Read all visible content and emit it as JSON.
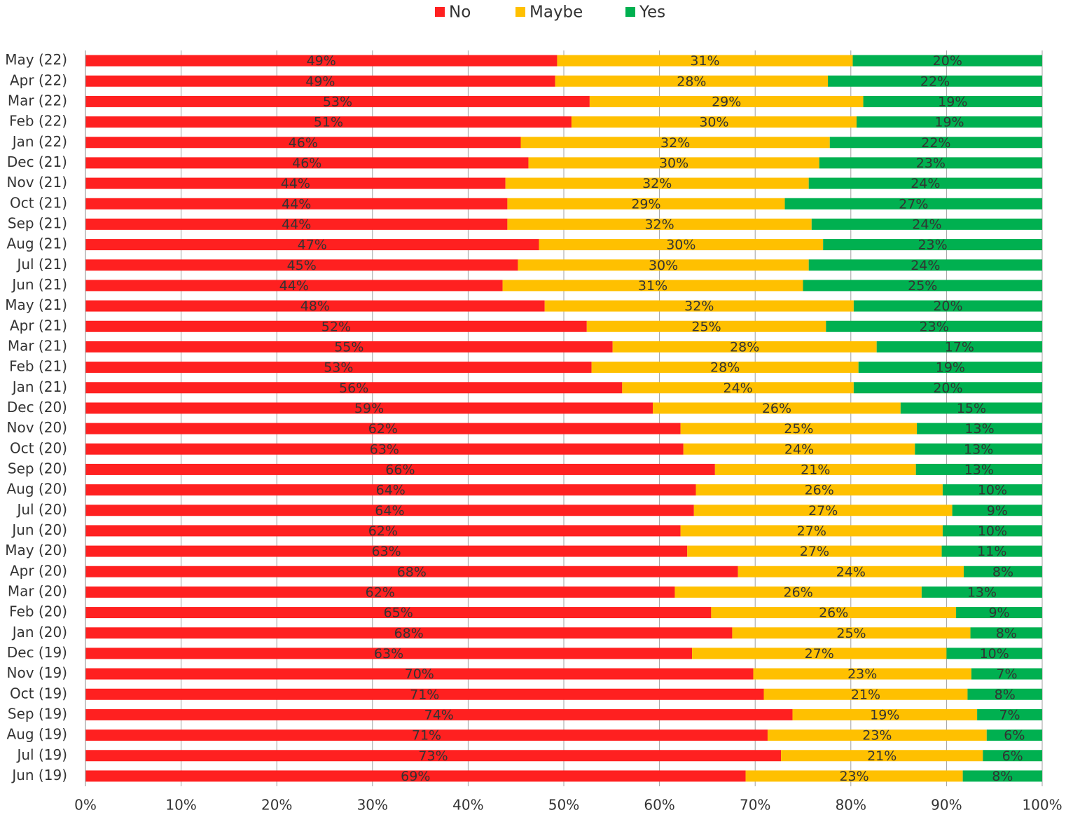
{
  "chart_data": {
    "type": "stacked-bar-horizontal",
    "categories": [
      "May (22)",
      "Apr (22)",
      "Mar (22)",
      "Feb (22)",
      "Jan (22)",
      "Dec (21)",
      "Nov (21)",
      "Oct (21)",
      "Sep (21)",
      "Aug (21)",
      "Jul (21)",
      "Jun (21)",
      "May (21)",
      "Apr (21)",
      "Mar (21)",
      "Feb (21)",
      "Jan (21)",
      "Dec (20)",
      "Nov (20)",
      "Oct (20)",
      "Sep (20)",
      "Aug (20)",
      "Jul (20)",
      "Jun (20)",
      "May (20)",
      "Apr (20)",
      "Mar (20)",
      "Feb (20)",
      "Jan (20)",
      "Dec (19)",
      "Nov (19)",
      "Oct (19)",
      "Sep (19)",
      "Aug (19)",
      "Jul (19)",
      "Jun (19)"
    ],
    "series": [
      {
        "name": "No",
        "color": "#ff2020",
        "values": [
          49.3,
          49.1,
          52.7,
          50.8,
          45.5,
          46.3,
          43.9,
          44.1,
          44.1,
          47.4,
          45.2,
          43.6,
          48.0,
          52.4,
          55.1,
          52.9,
          56.1,
          59.3,
          62.2,
          62.5,
          65.8,
          63.8,
          63.6,
          62.2,
          62.9,
          68.2,
          61.6,
          65.4,
          67.6,
          63.4,
          69.8,
          70.9,
          73.9,
          71.3,
          72.7,
          69.0
        ],
        "value_labels": [
          "49%",
          "49%",
          "53%",
          "51%",
          "46%",
          "46%",
          "44%",
          "44%",
          "44%",
          "47%",
          "45%",
          "44%",
          "48%",
          "52%",
          "55%",
          "53%",
          "56%",
          "59%",
          "62%",
          "63%",
          "66%",
          "64%",
          "64%",
          "62%",
          "63%",
          "68%",
          "62%",
          "65%",
          "68%",
          "63%",
          "70%",
          "71%",
          "74%",
          "71%",
          "73%",
          "69%"
        ]
      },
      {
        "name": "Maybe",
        "color": "#ffc000",
        "values": [
          30.9,
          28.5,
          28.6,
          29.8,
          32.3,
          30.4,
          31.7,
          29.0,
          31.8,
          29.7,
          30.4,
          31.4,
          32.3,
          25.0,
          27.6,
          27.9,
          24.2,
          25.9,
          24.7,
          24.2,
          21.0,
          25.8,
          27.0,
          27.4,
          26.6,
          23.6,
          25.8,
          25.6,
          24.9,
          26.6,
          22.8,
          21.3,
          19.3,
          22.9,
          21.1,
          22.7
        ],
        "value_labels": [
          "31%",
          "28%",
          "29%",
          "30%",
          "32%",
          "30%",
          "32%",
          "29%",
          "32%",
          "30%",
          "30%",
          "31%",
          "32%",
          "25%",
          "28%",
          "28%",
          "24%",
          "26%",
          "25%",
          "24%",
          "21%",
          "26%",
          "27%",
          "27%",
          "27%",
          "24%",
          "26%",
          "26%",
          "25%",
          "27%",
          "23%",
          "21%",
          "19%",
          "23%",
          "21%",
          "23%"
        ]
      },
      {
        "name": "Yes",
        "color": "#00b050",
        "values": [
          19.8,
          22.4,
          18.7,
          19.4,
          22.2,
          23.3,
          24.4,
          26.9,
          24.1,
          22.9,
          24.4,
          25.0,
          19.7,
          22.6,
          17.3,
          19.2,
          19.7,
          14.8,
          13.1,
          13.3,
          13.2,
          10.4,
          9.4,
          10.4,
          10.5,
          8.2,
          12.6,
          9.0,
          7.5,
          10.0,
          7.4,
          7.8,
          6.8,
          5.8,
          6.2,
          8.3
        ],
        "value_labels": [
          "20%",
          "22%",
          "19%",
          "19%",
          "22%",
          "23%",
          "24%",
          "27%",
          "24%",
          "23%",
          "24%",
          "25%",
          "20%",
          "23%",
          "17%",
          "19%",
          "20%",
          "15%",
          "13%",
          "13%",
          "13%",
          "10%",
          "9%",
          "10%",
          "11%",
          "8%",
          "13%",
          "9%",
          "8%",
          "10%",
          "7%",
          "8%",
          "7%",
          "6%",
          "6%",
          "8%"
        ]
      }
    ],
    "xlim": [
      0,
      100
    ],
    "xticks": [
      {
        "value": 0,
        "label": "0%"
      },
      {
        "value": 10,
        "label": "10%"
      },
      {
        "value": 20,
        "label": "20%"
      },
      {
        "value": 30,
        "label": "30%"
      },
      {
        "value": 40,
        "label": "40%"
      },
      {
        "value": 50,
        "label": "50%"
      },
      {
        "value": 60,
        "label": "60%"
      },
      {
        "value": 70,
        "label": "70%"
      },
      {
        "value": 80,
        "label": "80%"
      },
      {
        "value": 90,
        "label": "90%"
      },
      {
        "value": 100,
        "label": "100%"
      }
    ],
    "grid": true,
    "legend": "top"
  }
}
